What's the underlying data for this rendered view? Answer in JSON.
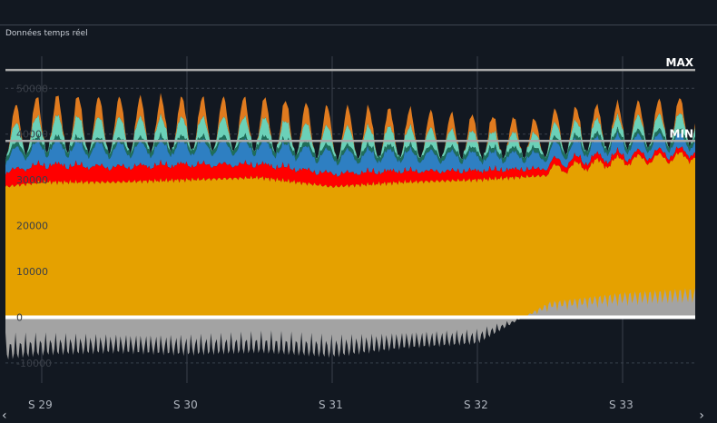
{
  "subtitle": "Données temps réel",
  "nav": {
    "prev": "‹",
    "next": "›"
  },
  "colors": {
    "background": "#121821",
    "nuclear": "#e5a100",
    "gas": "#ff0000",
    "hydro": "#2e7fc2",
    "wind": "#1f6e5a",
    "solar_teal": "#6bd1b8",
    "peak": "#e07b1f",
    "exchanges": "#a3a3a3",
    "reference_lines": "#a9a9a9"
  },
  "chart_data": {
    "type": "area",
    "stacked": true,
    "title": "",
    "xlabel": "",
    "ylabel": "",
    "ylim": [
      -12000,
      57000
    ],
    "yticks": [
      50000,
      40000,
      30000,
      20000,
      10000,
      0,
      -10000
    ],
    "ytick_labels": [
      "50000",
      "40000",
      "30000",
      "20000",
      "10000",
      "0",
      "-10000"
    ],
    "x_unit": "week",
    "xlim": [
      28.75,
      33.5
    ],
    "xticks": [
      29,
      30,
      31,
      32,
      33
    ],
    "xtick_labels": [
      "S 29",
      "S 30",
      "S 31",
      "S 32",
      "S 33"
    ],
    "grid": true,
    "reference_lines": [
      {
        "label": "MAX",
        "value": 54000
      },
      {
        "label": "MIN",
        "value": 38500
      }
    ],
    "series_anchors": {
      "x": [
        28.75,
        29.0,
        29.5,
        30.0,
        30.5,
        31.0,
        31.5,
        32.0,
        32.5,
        33.0,
        33.5
      ],
      "nuclear_base": [
        28500,
        29500,
        29500,
        30000,
        30500,
        28500,
        29500,
        30000,
        31000,
        33000,
        34000
      ],
      "gas": [
        3500,
        4000,
        3500,
        3500,
        3000,
        3000,
        2500,
        2000,
        1500,
        1000,
        1000
      ],
      "hydro": [
        4500,
        5000,
        5000,
        5000,
        5000,
        5000,
        4500,
        4000,
        3500,
        3500,
        3000
      ],
      "wind": [
        1000,
        1000,
        1000,
        1000,
        1000,
        1000,
        1000,
        1000,
        1000,
        1000,
        1000
      ],
      "solar_teal_peak": [
        4000,
        4500,
        4500,
        4000,
        4000,
        4000,
        4000,
        3500,
        3000,
        3000,
        3500
      ],
      "orange_peak": [
        4000,
        4500,
        4500,
        4500,
        4500,
        4500,
        4000,
        3500,
        3000,
        3000,
        3500
      ],
      "exchanges_peak": [
        -9500,
        -8500,
        -8000,
        -8500,
        -8000,
        -9000,
        -7000,
        -6000,
        3500,
        5500,
        6500
      ]
    }
  }
}
